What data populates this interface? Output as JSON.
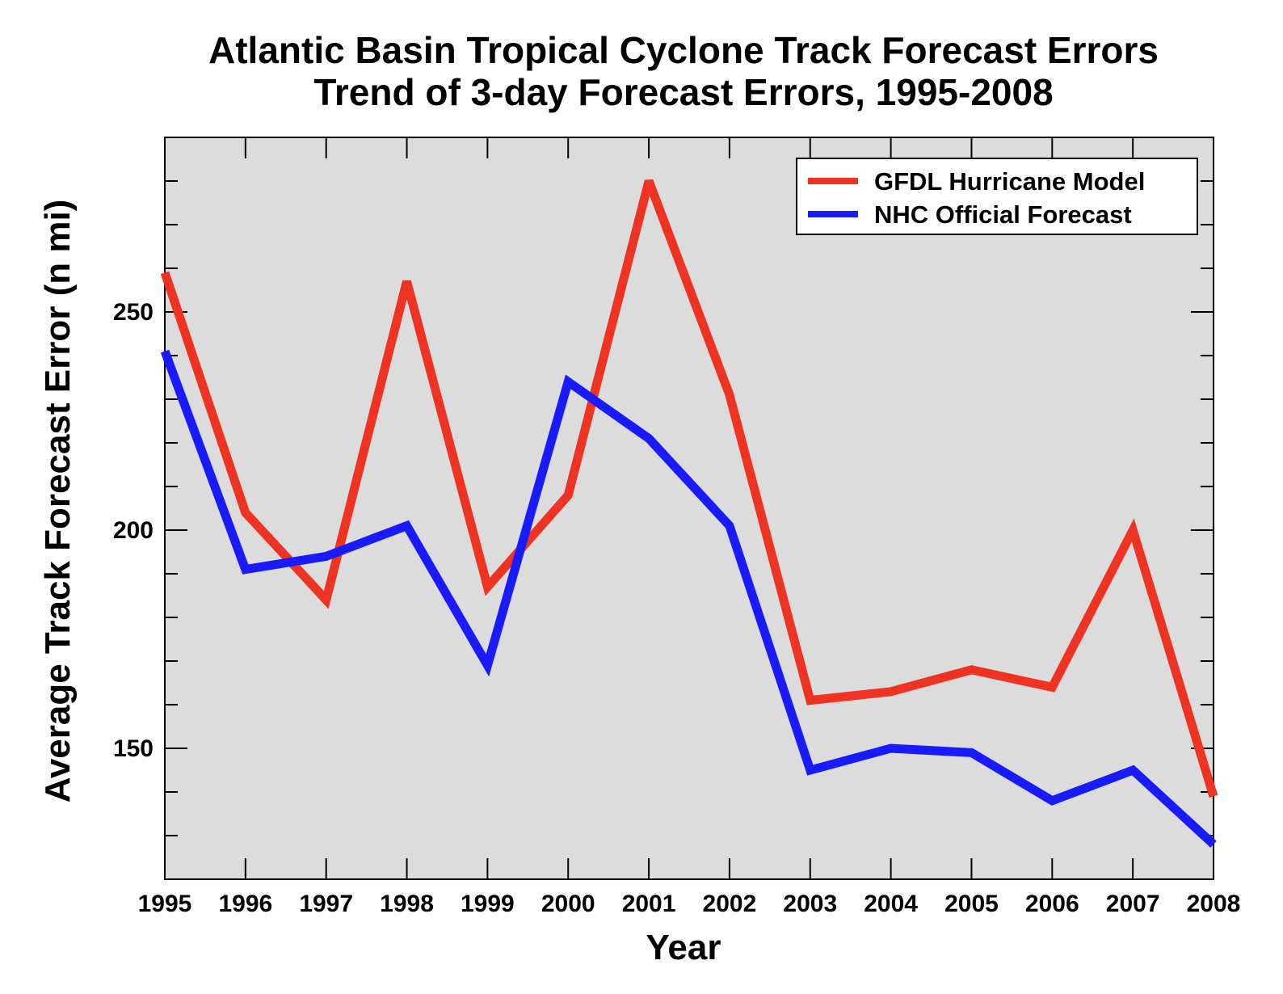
{
  "chart_data": {
    "type": "line",
    "title": "Atlantic Basin Tropical Cyclone Track Forecast Errors",
    "subtitle": "Trend of 3-day Forecast Errors, 1995-2008",
    "xlabel": "Year",
    "ylabel": "Average Track Forecast Error (n mi)",
    "x": [
      1995,
      1996,
      1997,
      1998,
      1999,
      2000,
      2001,
      2002,
      2003,
      2004,
      2005,
      2006,
      2007,
      2008
    ],
    "x_tick_labels": [
      "1995",
      "1996",
      "1997",
      "1998",
      "1999",
      "2000",
      "2001",
      "2002",
      "2003",
      "2004",
      "2005",
      "2006",
      "2007",
      "2008"
    ],
    "xlim": [
      1995,
      2008
    ],
    "ylim": [
      120,
      290
    ],
    "y_ticks": [
      150,
      200,
      250
    ],
    "y_tick_labels": [
      "150",
      "200",
      "250"
    ],
    "y_minor_step": 10,
    "grid": false,
    "plot_background": "#dcdcdc",
    "legend_position": "top-right",
    "series": [
      {
        "name": "GFDL Hurricane Model",
        "color": "#ee3322",
        "values": [
          259,
          204,
          184,
          257,
          187,
          208,
          280,
          231,
          161,
          163,
          168,
          164,
          200,
          139
        ]
      },
      {
        "name": "NHC Official Forecast",
        "color": "#1a1aff",
        "values": [
          241,
          191,
          194,
          201,
          169,
          234,
          221,
          201,
          145,
          150,
          149,
          138,
          145,
          128
        ]
      }
    ]
  }
}
